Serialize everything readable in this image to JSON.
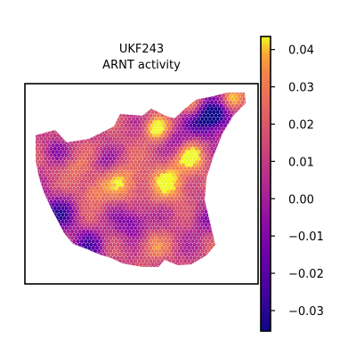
{
  "chart_data": {
    "type": "heatmap",
    "title": [
      "UKF243",
      "ARNT activity"
    ],
    "xlabel": "",
    "ylabel": "",
    "axes_ticks_visible": false,
    "colormap": "plasma",
    "colorbar": {
      "vmin": -0.0355,
      "vmax": 0.0435,
      "ticks": [
        0.04,
        0.03,
        0.02,
        0.01,
        0.0,
        -0.01,
        -0.02,
        -0.03
      ],
      "tick_labels": [
        "0.04",
        "0.03",
        "0.02",
        "0.01",
        "0.00",
        "−0.01",
        "−0.02",
        "−0.03"
      ],
      "location": "right"
    },
    "spots_description": "spatial transcriptomics spots (hexagonal grid) colored by ARNT activity; mostly values between -0.01 and 0.03, with low-activity (purple) clusters in the upper-right lobe, lower-left and lower-center",
    "value_clusters": [
      {
        "region": "upper-right lobe",
        "approx_value": -0.02
      },
      {
        "region": "left edge",
        "approx_value": -0.005
      },
      {
        "region": "lower-left",
        "approx_value": -0.02
      },
      {
        "region": "center",
        "approx_value": 0.02
      },
      {
        "region": "lower-center",
        "approx_value": -0.015
      },
      {
        "region": "right-center",
        "approx_value": 0.025
      }
    ]
  }
}
